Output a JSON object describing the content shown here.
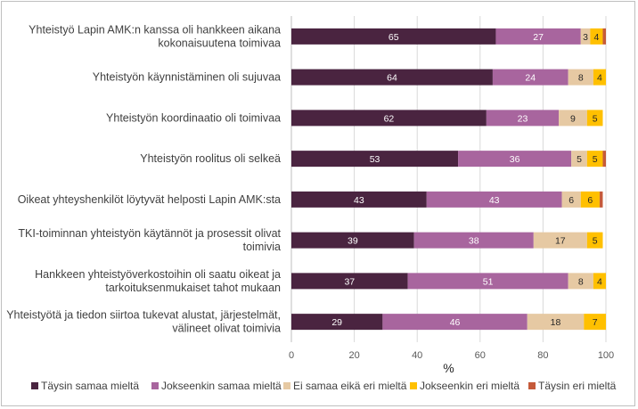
{
  "chart_data": {
    "type": "bar",
    "orientation": "horizontal",
    "stacked": true,
    "xlabel": "%",
    "xlim": [
      0,
      100
    ],
    "xticks": [
      0,
      20,
      40,
      60,
      80,
      100
    ],
    "grid": true,
    "legend_position": "bottom",
    "categories": [
      [
        "Yhteistyö Lapin AMK:n kanssa oli hankkeen aikana",
        "kokonaisuutena toimivaa"
      ],
      [
        "Yhteistyön käynnistäminen oli sujuvaa"
      ],
      [
        "Yhteistyön koordinaatio oli toimivaa"
      ],
      [
        "Yhteistyön roolitus oli selkeä"
      ],
      [
        "Oikeat yhteyshenkilöt löytyvät helposti Lapin AMK:sta"
      ],
      [
        "TKI-toiminnan yhteistyön käytännöt ja prosessit olivat",
        "toimivia"
      ],
      [
        "Hankkeen yhteistyöverkostoihin oli saatu oikeat ja",
        "tarkoituksenmukaiset tahot mukaan"
      ],
      [
        "Yhteistyötä ja tiedon siirtoa tukevat alustat, järjestelmät,",
        "välineet olivat toimivia"
      ]
    ],
    "series": [
      {
        "name": "Täysin samaa mieltä",
        "color": "#4a2440",
        "label_color": "#ffffff",
        "values": [
          65,
          64,
          62,
          53,
          43,
          39,
          37,
          29
        ]
      },
      {
        "name": "Jokseenkin samaa mieltä",
        "color": "#a8659e",
        "label_color": "#ffffff",
        "values": [
          27,
          24,
          23,
          36,
          43,
          38,
          51,
          46
        ]
      },
      {
        "name": "Ei samaa eikä eri mieltä",
        "color": "#e6c9a3",
        "label_color": "#262626",
        "values": [
          3,
          8,
          9,
          5,
          6,
          17,
          8,
          18
        ]
      },
      {
        "name": "Jokseenkin eri mieltä",
        "color": "#ffc000",
        "label_color": "#262626",
        "values": [
          4,
          4,
          5,
          5,
          6,
          5,
          4,
          7
        ]
      },
      {
        "name": "Täysin eri mieltä",
        "color": "#c55a3a",
        "label_color": "#262626",
        "values": [
          1,
          0,
          0,
          1,
          1,
          0,
          0,
          0
        ]
      }
    ]
  }
}
